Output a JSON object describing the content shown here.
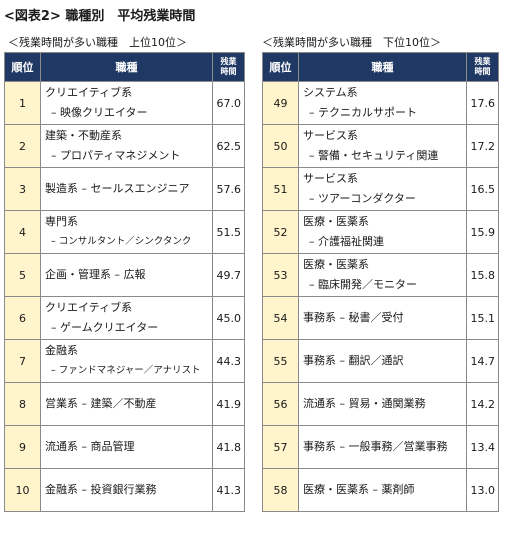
{
  "title": "<図表2> 職種別　平均残業時間",
  "left": {
    "caption": "＜残業時間が多い職種　上位10位＞",
    "headers": {
      "rank": "順位",
      "job": "職種",
      "hours_1": "残業",
      "hours_2": "時間"
    },
    "rows": [
      {
        "rank": "1",
        "line1": "クリエイティブ系",
        "line2": "– 映像クリエイター",
        "hours": "67.0"
      },
      {
        "rank": "2",
        "line1": "建築・不動産系",
        "line2": "– プロパティマネジメント",
        "hours": "62.5"
      },
      {
        "rank": "3",
        "line1": "製造系 – セールスエンジニア",
        "line2": "",
        "hours": "57.6"
      },
      {
        "rank": "4",
        "line1": "専門系",
        "line2": "– コンサルタント／シンクタンク",
        "hours": "51.5"
      },
      {
        "rank": "5",
        "line1": "企画・管理系 – 広報",
        "line2": "",
        "hours": "49.7"
      },
      {
        "rank": "6",
        "line1": "クリエイティブ系",
        "line2": "– ゲームクリエイター",
        "hours": "45.0"
      },
      {
        "rank": "7",
        "line1": "金融系",
        "line2": "– ファンドマネジャー／アナリスト",
        "hours": "44.3"
      },
      {
        "rank": "8",
        "line1": "営業系 – 建築／不動産",
        "line2": "",
        "hours": "41.9"
      },
      {
        "rank": "9",
        "line1": "流通系 – 商品管理",
        "line2": "",
        "hours": "41.8"
      },
      {
        "rank": "10",
        "line1": "金融系 – 投資銀行業務",
        "line2": "",
        "hours": "41.3"
      }
    ]
  },
  "right": {
    "caption": "＜残業時間が多い職種　下位10位＞",
    "headers": {
      "rank": "順位",
      "job": "職種",
      "hours_1": "残業",
      "hours_2": "時間"
    },
    "rows": [
      {
        "rank": "49",
        "line1": "システム系",
        "line2": "– テクニカルサポート",
        "hours": "17.6"
      },
      {
        "rank": "50",
        "line1": "サービス系",
        "line2": "– 警備・セキュリティ関連",
        "hours": "17.2"
      },
      {
        "rank": "51",
        "line1": "サービス系",
        "line2": "– ツアーコンダクター",
        "hours": "16.5"
      },
      {
        "rank": "52",
        "line1": "医療・医薬系",
        "line2": "– 介護福祉関連",
        "hours": "15.9"
      },
      {
        "rank": "53",
        "line1": "医療・医薬系",
        "line2": "– 臨床開発／モニター",
        "hours": "15.8"
      },
      {
        "rank": "54",
        "line1": "事務系 – 秘書／受付",
        "line2": "",
        "hours": "15.1"
      },
      {
        "rank": "55",
        "line1": "事務系 – 翻訳／通訳",
        "line2": "",
        "hours": "14.7"
      },
      {
        "rank": "56",
        "line1": "流通系 – 貿易・通関業務",
        "line2": "",
        "hours": "14.2"
      },
      {
        "rank": "57",
        "line1": "事務系 – 一般事務／営業事務",
        "line2": "",
        "hours": "13.4"
      },
      {
        "rank": "58",
        "line1": "医療・医薬系 – 薬剤師",
        "line2": "",
        "hours": "13.0"
      }
    ]
  },
  "colors": {
    "header_bg": "#1f3864",
    "rank_bg": "#fff4cc",
    "border": "#8a8a8a"
  }
}
